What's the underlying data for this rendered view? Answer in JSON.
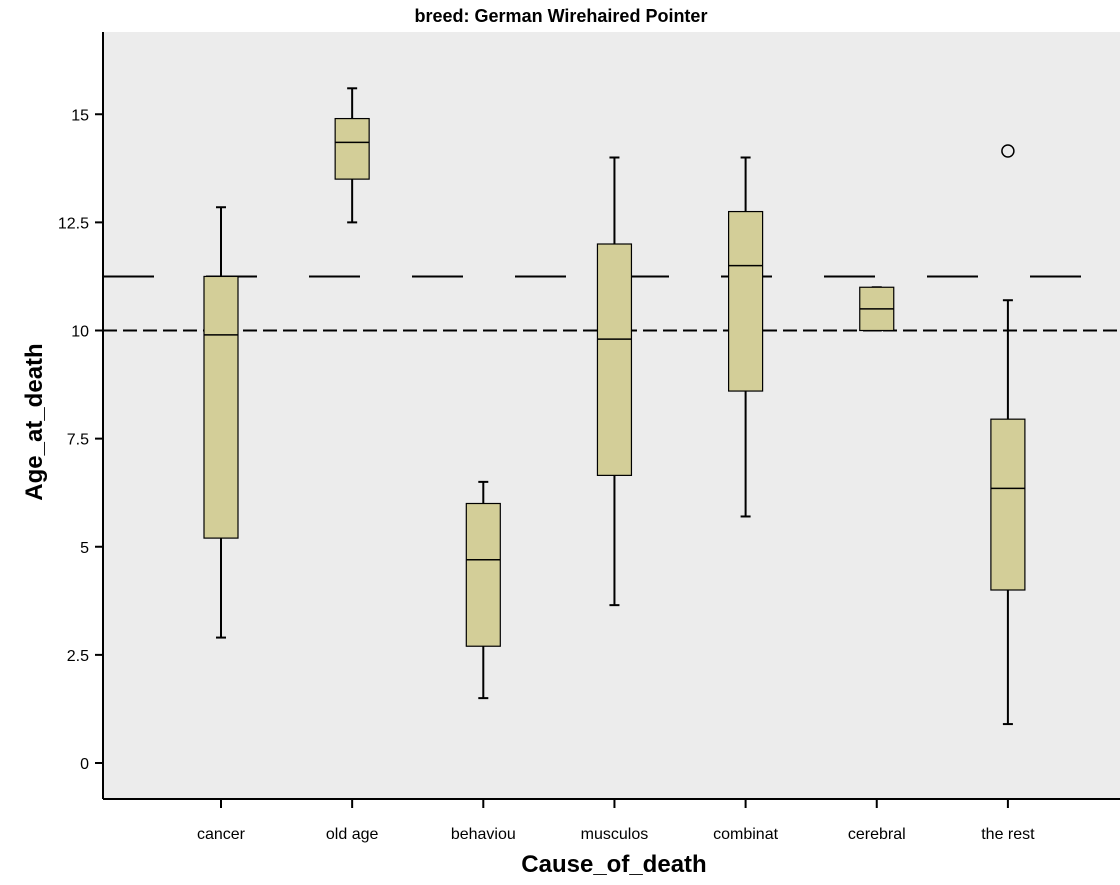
{
  "chart_data": {
    "type": "boxplot",
    "title": "breed: German Wirehaired Pointer",
    "xlabel": "Cause_of_death",
    "ylabel": "Age_at_death",
    "ylim": [
      -0.8,
      16.8
    ],
    "yticks": [
      0,
      2.5,
      5,
      7.5,
      10,
      12.5,
      15
    ],
    "ytick_labels": [
      "0",
      "2.5",
      "5",
      "7.5",
      "10",
      "12.5",
      "15"
    ],
    "categories": [
      "cancer",
      "old age",
      "behaviou",
      "musculos",
      "combinat",
      "cerebral",
      "the rest"
    ],
    "boxes": [
      {
        "category": "cancer",
        "whisker_low": 2.9,
        "q1": 5.2,
        "median": 9.9,
        "q3": 11.25,
        "whisker_high": 12.85,
        "outliers": []
      },
      {
        "category": "old age",
        "whisker_low": 12.5,
        "q1": 13.5,
        "median": 14.35,
        "q3": 14.9,
        "whisker_high": 15.6,
        "outliers": []
      },
      {
        "category": "behaviou",
        "whisker_low": 1.5,
        "q1": 2.7,
        "median": 4.7,
        "q3": 6.0,
        "whisker_high": 6.5,
        "outliers": []
      },
      {
        "category": "musculos",
        "whisker_low": 3.65,
        "q1": 6.65,
        "median": 9.8,
        "q3": 12.0,
        "whisker_high": 14.0,
        "outliers": []
      },
      {
        "category": "combinat",
        "whisker_low": 5.7,
        "q1": 8.6,
        "median": 11.5,
        "q3": 12.75,
        "whisker_high": 14.0,
        "outliers": []
      },
      {
        "category": "cerebral",
        "whisker_low": 10.0,
        "q1": 10.0,
        "median": 10.5,
        "q3": 11.0,
        "whisker_high": 11.0,
        "outliers": []
      },
      {
        "category": "the rest",
        "whisker_low": 0.9,
        "q1": 4.0,
        "median": 6.35,
        "q3": 7.95,
        "whisker_high": 10.7,
        "outliers": [
          14.15
        ]
      }
    ],
    "reference_lines": [
      {
        "value": 11.25,
        "style": "long-dash"
      },
      {
        "value": 10.0,
        "style": "short-dash"
      }
    ],
    "box_fill": "#d3ce98",
    "plot_background": "#ececec",
    "grid": false,
    "legend": "none"
  }
}
